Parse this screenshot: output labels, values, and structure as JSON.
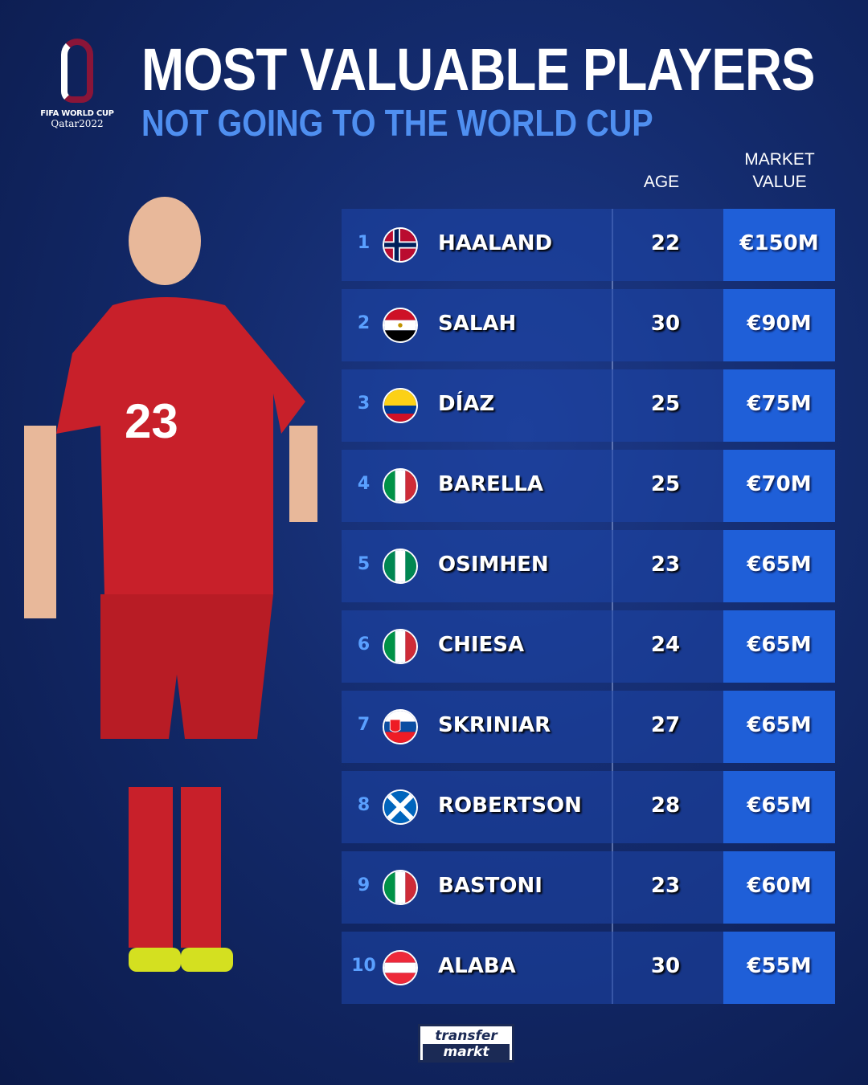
{
  "logo": {
    "line1": "FIFA WORLD CUP",
    "line2": "Qatar2022"
  },
  "title": "MOST VALUABLE PLAYERS",
  "subtitle": "NOT GOING TO THE WORLD CUP",
  "headers": {
    "age": "AGE",
    "value_line1": "MARKET",
    "value_line2": "VALUE"
  },
  "colors": {
    "accent": "#4f8ff0",
    "value_cell": "#1f5fd8",
    "row": "#1e46aa"
  },
  "players": [
    {
      "rank": "1",
      "flag": "norway",
      "name": "HAALAND",
      "age": "22",
      "value": "€150M"
    },
    {
      "rank": "2",
      "flag": "egypt",
      "name": "SALAH",
      "age": "30",
      "value": "€90M"
    },
    {
      "rank": "3",
      "flag": "colombia",
      "name": "DÍAZ",
      "age": "25",
      "value": "€75M"
    },
    {
      "rank": "4",
      "flag": "italy",
      "name": "BARELLA",
      "age": "25",
      "value": "€70M"
    },
    {
      "rank": "5",
      "flag": "nigeria",
      "name": "OSIMHEN",
      "age": "23",
      "value": "€65M"
    },
    {
      "rank": "6",
      "flag": "italy",
      "name": "CHIESA",
      "age": "24",
      "value": "€65M"
    },
    {
      "rank": "7",
      "flag": "slovakia",
      "name": "SKRINIAR",
      "age": "27",
      "value": "€65M"
    },
    {
      "rank": "8",
      "flag": "scotland",
      "name": "ROBERTSON",
      "age": "28",
      "value": "€65M"
    },
    {
      "rank": "9",
      "flag": "italy",
      "name": "BASTONI",
      "age": "23",
      "value": "€60M"
    },
    {
      "rank": "10",
      "flag": "austria",
      "name": "ALABA",
      "age": "30",
      "value": "€55M"
    }
  ],
  "footer": {
    "line1": "transfer",
    "line2": "markt"
  },
  "player_photo": {
    "shirt_number": "23"
  }
}
